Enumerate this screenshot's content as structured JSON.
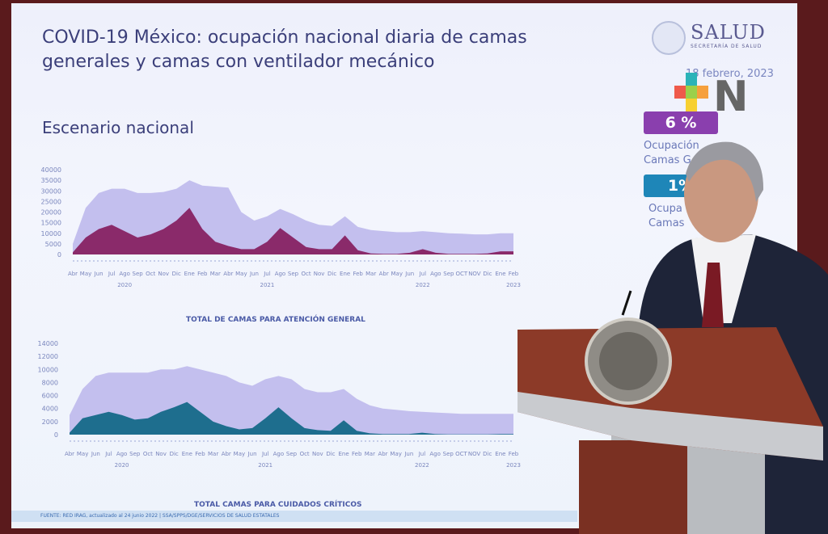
{
  "slide": {
    "title": "COVID-19 México: ocupación nacional diaria de camas generales y camas con ventilador mecánico",
    "subtitle": "Escenario nacional",
    "logo_text": "SALUD",
    "logo_sub": "SECRETARÍA DE SALUD",
    "date": "18 febrero, 2023",
    "badge1": {
      "value": "6 %",
      "label": "Ocupación Camas G",
      "color": "#8a3fae"
    },
    "badge2": {
      "value": "1%",
      "label": "Ocupa Camas",
      "color": "#1e86b8"
    },
    "footer": "FUENTE: RED IRAG, actualizado al 24 junio 2022 | SSA/SPPS/DGE/SERVICIOS DE SALUD ESTATALES"
  },
  "watermark": "N",
  "chart_data": [
    {
      "type": "area",
      "legend": "TOTAL DE CAMAS PARA ATENCIÓN GENERAL",
      "ylim": [
        0,
        40000
      ],
      "yticks": [
        0,
        5000,
        10000,
        15000,
        20000,
        25000,
        30000,
        35000,
        40000
      ],
      "categories": [
        "Abr",
        "May",
        "Jun",
        "Jul",
        "Ago",
        "Sep",
        "Oct",
        "Nov",
        "Dic",
        "Ene",
        "Feb",
        "Mar",
        "Abr",
        "May",
        "Jun",
        "Jul",
        "Ago",
        "Sep",
        "Oct",
        "Nov",
        "Dic",
        "Ene",
        "Feb",
        "Mar",
        "Abr",
        "May",
        "Jun",
        "Jul",
        "Ago",
        "Sep",
        "OCT",
        "NOV",
        "Dic",
        "Ene",
        "Feb"
      ],
      "years": [
        {
          "label": "2020",
          "at": 4
        },
        {
          "label": "2021",
          "at": 15
        },
        {
          "label": "2022",
          "at": 27
        },
        {
          "label": "2023",
          "at": 34
        }
      ],
      "series": [
        {
          "values": [
            5000,
            22000,
            29000,
            31000,
            31000,
            29000,
            29000,
            29500,
            31000,
            35000,
            32500,
            32000,
            31500,
            20000,
            16000,
            18000,
            21500,
            19000,
            16000,
            14000,
            13500,
            18000,
            13000,
            11500,
            11000,
            10500,
            10500,
            11000,
            10500,
            10000,
            9800,
            9500,
            9500,
            10000,
            10000
          ],
          "color": "#c3bfee"
        },
        {
          "values": [
            1000,
            8000,
            12000,
            14000,
            11000,
            8000,
            9500,
            12000,
            16000,
            22000,
            12000,
            6000,
            4000,
            2500,
            2500,
            6000,
            12500,
            8000,
            3500,
            2500,
            2500,
            9000,
            2000,
            500,
            300,
            300,
            800,
            2500,
            800,
            300,
            300,
            300,
            500,
            1500,
            1500
          ],
          "color": "#8a2a6a"
        }
      ]
    },
    {
      "type": "area",
      "legend": "TOTAL CAMAS PARA CUIDADOS CRÍTICOS",
      "ylim": [
        0,
        14000
      ],
      "yticks": [
        0,
        2000,
        4000,
        6000,
        8000,
        10000,
        12000,
        14000
      ],
      "categories": [
        "Abr",
        "May",
        "Jun",
        "Jul",
        "Ago",
        "Sep",
        "Oct",
        "Nov",
        "Dic",
        "Ene",
        "Feb",
        "Mar",
        "Abr",
        "May",
        "Jun",
        "Jul",
        "Ago",
        "Sep",
        "Oct",
        "Nov",
        "Dic",
        "Ene",
        "Feb",
        "Mar",
        "Abr",
        "May",
        "Jun",
        "Jul",
        "Ago",
        "Sep",
        "OCT",
        "NOV",
        "Dic",
        "Ene",
        "Feb"
      ],
      "years": [
        {
          "label": "2020",
          "at": 4
        },
        {
          "label": "2021",
          "at": 15
        },
        {
          "label": "2022",
          "at": 27
        },
        {
          "label": "2023",
          "at": 34
        }
      ],
      "series": [
        {
          "values": [
            3000,
            7000,
            9000,
            9500,
            9500,
            9500,
            9500,
            10000,
            10000,
            10500,
            10000,
            9500,
            9000,
            8000,
            7500,
            8500,
            9000,
            8500,
            7000,
            6500,
            6500,
            7000,
            5500,
            4500,
            4000,
            3800,
            3600,
            3500,
            3400,
            3300,
            3200,
            3200,
            3200,
            3200,
            3200
          ],
          "color": "#c3bfee"
        },
        {
          "values": [
            300,
            2500,
            3000,
            3500,
            3000,
            2300,
            2500,
            3500,
            4200,
            5000,
            3500,
            2000,
            1300,
            800,
            1000,
            2500,
            4200,
            2500,
            1000,
            700,
            600,
            2200,
            600,
            200,
            100,
            100,
            100,
            300,
            100,
            50,
            50,
            50,
            50,
            100,
            100
          ],
          "color": "#1e6e8e"
        }
      ]
    }
  ]
}
